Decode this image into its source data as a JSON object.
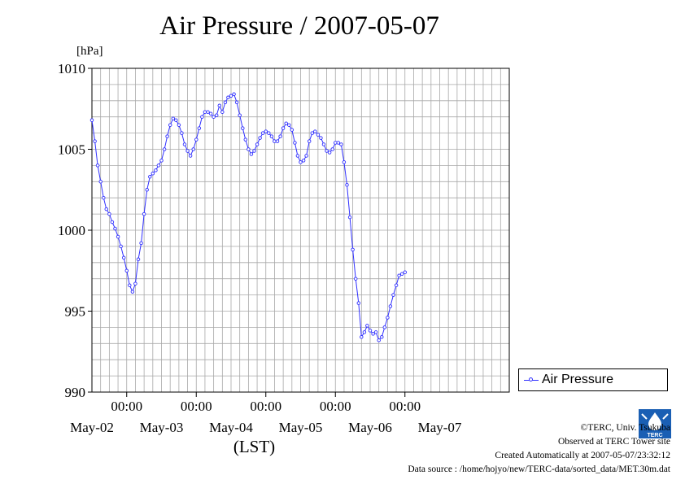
{
  "chart_data": {
    "type": "line",
    "title": "Air Pressure / 2007-05-07",
    "ylabel": "[hPa]",
    "xlabel": "(LST)",
    "ylim": [
      990,
      1010
    ],
    "yticks": [
      "990",
      "995",
      "1000",
      "1005",
      "1010"
    ],
    "xlim": [
      "2007-05-01T12:00",
      "2007-05-07T12:00"
    ],
    "x_time_labels": [
      "00:00",
      "00:00",
      "00:00",
      "00:00",
      "00:00"
    ],
    "x_date_labels": [
      "May-02",
      "May-03",
      "May-04",
      "May-05",
      "May-06",
      "May-07"
    ],
    "grid": true,
    "legend_position": "right",
    "series": [
      {
        "name": "Air Pressure",
        "color": "#3030ff",
        "marker": "circle",
        "points": [
          [
            "2007-05-01T12:00",
            1006.8
          ],
          [
            "2007-05-01T13:00",
            1005.5
          ],
          [
            "2007-05-01T14:00",
            1004.0
          ],
          [
            "2007-05-01T15:00",
            1003.0
          ],
          [
            "2007-05-01T16:00",
            1002.0
          ],
          [
            "2007-05-01T17:00",
            1001.3
          ],
          [
            "2007-05-01T18:00",
            1001.0
          ],
          [
            "2007-05-01T19:00",
            1000.5
          ],
          [
            "2007-05-01T20:00",
            1000.1
          ],
          [
            "2007-05-01T21:00",
            999.6
          ],
          [
            "2007-05-01T22:00",
            999.0
          ],
          [
            "2007-05-01T23:00",
            998.3
          ],
          [
            "2007-05-02T00:00",
            997.5
          ],
          [
            "2007-05-02T01:00",
            996.6
          ],
          [
            "2007-05-02T02:00",
            996.2
          ],
          [
            "2007-05-02T03:00",
            996.7
          ],
          [
            "2007-05-02T04:00",
            998.2
          ],
          [
            "2007-05-02T05:00",
            999.2
          ],
          [
            "2007-05-02T06:00",
            1001.0
          ],
          [
            "2007-05-02T07:00",
            1002.5
          ],
          [
            "2007-05-02T08:00",
            1003.3
          ],
          [
            "2007-05-02T09:00",
            1003.5
          ],
          [
            "2007-05-02T10:00",
            1003.7
          ],
          [
            "2007-05-02T11:00",
            1004.0
          ],
          [
            "2007-05-02T12:00",
            1004.3
          ],
          [
            "2007-05-02T13:00",
            1005.0
          ],
          [
            "2007-05-02T14:00",
            1005.8
          ],
          [
            "2007-05-02T15:00",
            1006.5
          ],
          [
            "2007-05-02T16:00",
            1006.9
          ],
          [
            "2007-05-02T17:00",
            1006.8
          ],
          [
            "2007-05-02T18:00",
            1006.5
          ],
          [
            "2007-05-02T19:00",
            1006.0
          ],
          [
            "2007-05-02T20:00",
            1005.3
          ],
          [
            "2007-05-02T21:00",
            1004.9
          ],
          [
            "2007-05-02T22:00",
            1004.6
          ],
          [
            "2007-05-02T23:00",
            1005.0
          ],
          [
            "2007-05-03T00:00",
            1005.6
          ],
          [
            "2007-05-03T01:00",
            1006.3
          ],
          [
            "2007-05-03T02:00",
            1007.0
          ],
          [
            "2007-05-03T03:00",
            1007.3
          ],
          [
            "2007-05-03T04:00",
            1007.3
          ],
          [
            "2007-05-03T05:00",
            1007.2
          ],
          [
            "2007-05-03T06:00",
            1007.0
          ],
          [
            "2007-05-03T07:00",
            1007.1
          ],
          [
            "2007-05-03T08:00",
            1007.7
          ],
          [
            "2007-05-03T09:00",
            1007.3
          ],
          [
            "2007-05-03T10:00",
            1007.9
          ],
          [
            "2007-05-03T11:00",
            1008.2
          ],
          [
            "2007-05-03T12:00",
            1008.3
          ],
          [
            "2007-05-03T13:00",
            1008.4
          ],
          [
            "2007-05-03T14:00",
            1007.9
          ],
          [
            "2007-05-03T15:00",
            1007.1
          ],
          [
            "2007-05-03T16:00",
            1006.3
          ],
          [
            "2007-05-03T17:00",
            1005.6
          ],
          [
            "2007-05-03T18:00",
            1005.0
          ],
          [
            "2007-05-03T19:00",
            1004.7
          ],
          [
            "2007-05-03T20:00",
            1004.9
          ],
          [
            "2007-05-03T21:00",
            1005.3
          ],
          [
            "2007-05-03T22:00",
            1005.7
          ],
          [
            "2007-05-03T23:00",
            1006.0
          ],
          [
            "2007-05-04T00:00",
            1006.1
          ],
          [
            "2007-05-04T01:00",
            1006.0
          ],
          [
            "2007-05-04T02:00",
            1005.8
          ],
          [
            "2007-05-04T03:00",
            1005.5
          ],
          [
            "2007-05-04T04:00",
            1005.5
          ],
          [
            "2007-05-04T05:00",
            1005.8
          ],
          [
            "2007-05-04T06:00",
            1006.3
          ],
          [
            "2007-05-04T07:00",
            1006.6
          ],
          [
            "2007-05-04T08:00",
            1006.5
          ],
          [
            "2007-05-04T09:00",
            1006.2
          ],
          [
            "2007-05-04T10:00",
            1005.4
          ],
          [
            "2007-05-04T11:00",
            1004.6
          ],
          [
            "2007-05-04T12:00",
            1004.2
          ],
          [
            "2007-05-04T13:00",
            1004.3
          ],
          [
            "2007-05-04T14:00",
            1004.6
          ],
          [
            "2007-05-04T15:00",
            1005.5
          ],
          [
            "2007-05-04T16:00",
            1006.0
          ],
          [
            "2007-05-04T17:00",
            1006.1
          ],
          [
            "2007-05-04T18:00",
            1005.9
          ],
          [
            "2007-05-04T19:00",
            1005.7
          ],
          [
            "2007-05-04T20:00",
            1005.3
          ],
          [
            "2007-05-04T21:00",
            1004.9
          ],
          [
            "2007-05-04T22:00",
            1004.8
          ],
          [
            "2007-05-04T23:00",
            1005.0
          ],
          [
            "2007-05-05T00:00",
            1005.4
          ],
          [
            "2007-05-05T01:00",
            1005.4
          ],
          [
            "2007-05-05T02:00",
            1005.3
          ],
          [
            "2007-05-05T03:00",
            1004.2
          ],
          [
            "2007-05-05T04:00",
            1002.8
          ],
          [
            "2007-05-05T05:00",
            1000.8
          ],
          [
            "2007-05-05T06:00",
            998.8
          ],
          [
            "2007-05-05T07:00",
            997.0
          ],
          [
            "2007-05-05T08:00",
            995.5
          ],
          [
            "2007-05-05T09:00",
            993.4
          ],
          [
            "2007-05-05T10:00",
            993.7
          ],
          [
            "2007-05-05T11:00",
            994.1
          ],
          [
            "2007-05-05T12:00",
            993.8
          ],
          [
            "2007-05-05T13:00",
            993.6
          ],
          [
            "2007-05-05T14:00",
            993.7
          ],
          [
            "2007-05-05T15:00",
            993.2
          ],
          [
            "2007-05-05T16:00",
            993.4
          ],
          [
            "2007-05-05T17:00",
            994.0
          ],
          [
            "2007-05-05T18:00",
            994.6
          ],
          [
            "2007-05-05T19:00",
            995.3
          ],
          [
            "2007-05-05T20:00",
            996.0
          ],
          [
            "2007-05-05T21:00",
            996.6
          ],
          [
            "2007-05-05T22:00",
            997.2
          ],
          [
            "2007-05-05T23:00",
            997.3
          ],
          [
            "2007-05-06T00:00",
            997.4
          ]
        ]
      }
    ]
  },
  "credits": {
    "copyright": "©TERC, Univ. Tsukuba",
    "observed": "Observed at TERC Tower site",
    "created": "Created Automatically at 2007-05-07/23:32:12",
    "source": "Data source : /home/hojyo/new/TERC-data/sorted_data/MET.30m.dat",
    "logo_text": "TERC"
  }
}
